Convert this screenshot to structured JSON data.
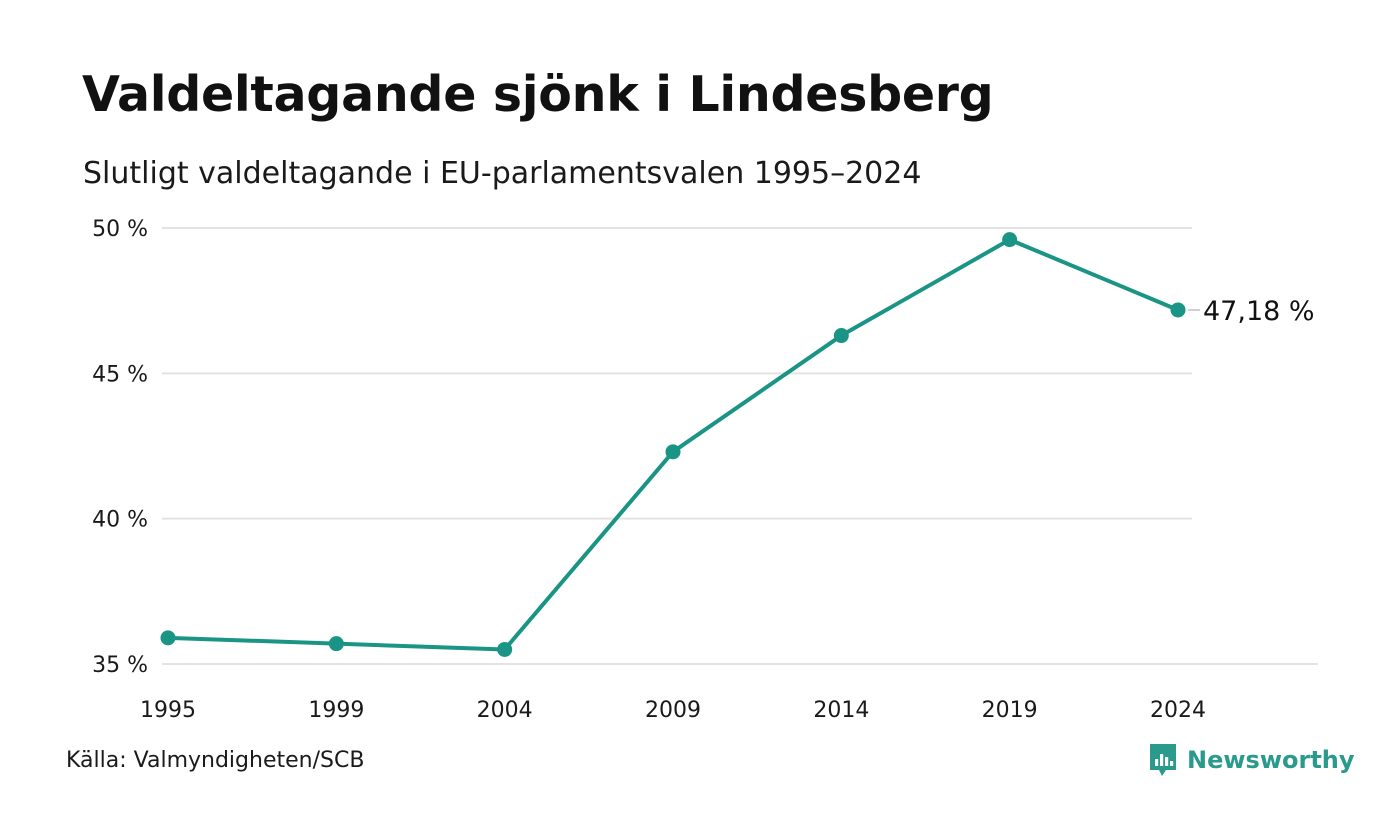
{
  "header": {
    "title": "Valdeltagande sjönk i Lindesberg",
    "subtitle": "Slutligt valdeltagande i EU-parlamentsvalen 1995–2024"
  },
  "footer": {
    "source": "Källa: Valmyndigheten/SCB",
    "brand": "Newsworthy",
    "brand_icon": "newsworthy-logo-icon"
  },
  "colors": {
    "line": "#1a9485",
    "grid": "#e3e3e3",
    "text": "#111111",
    "brand": "#2a9a8c"
  },
  "chart_data": {
    "type": "line",
    "title": "Valdeltagande sjönk i Lindesberg",
    "subtitle": "Slutligt valdeltagande i EU-parlamentsvalen 1995–2024",
    "categories": [
      "1995",
      "1999",
      "2004",
      "2009",
      "2014",
      "2019",
      "2024"
    ],
    "series": [
      {
        "values": [
          35.9,
          35.7,
          35.5,
          42.3,
          46.3,
          49.6,
          47.18
        ]
      }
    ],
    "ylim": [
      35,
      50
    ],
    "yticks": [
      50,
      45,
      40,
      35
    ],
    "ytick_labels": [
      "50 %",
      "45 %",
      "40 %",
      "35 %"
    ],
    "end_label": "47,18 %",
    "grid": true,
    "legend": "none",
    "xlabel": "",
    "ylabel": ""
  }
}
